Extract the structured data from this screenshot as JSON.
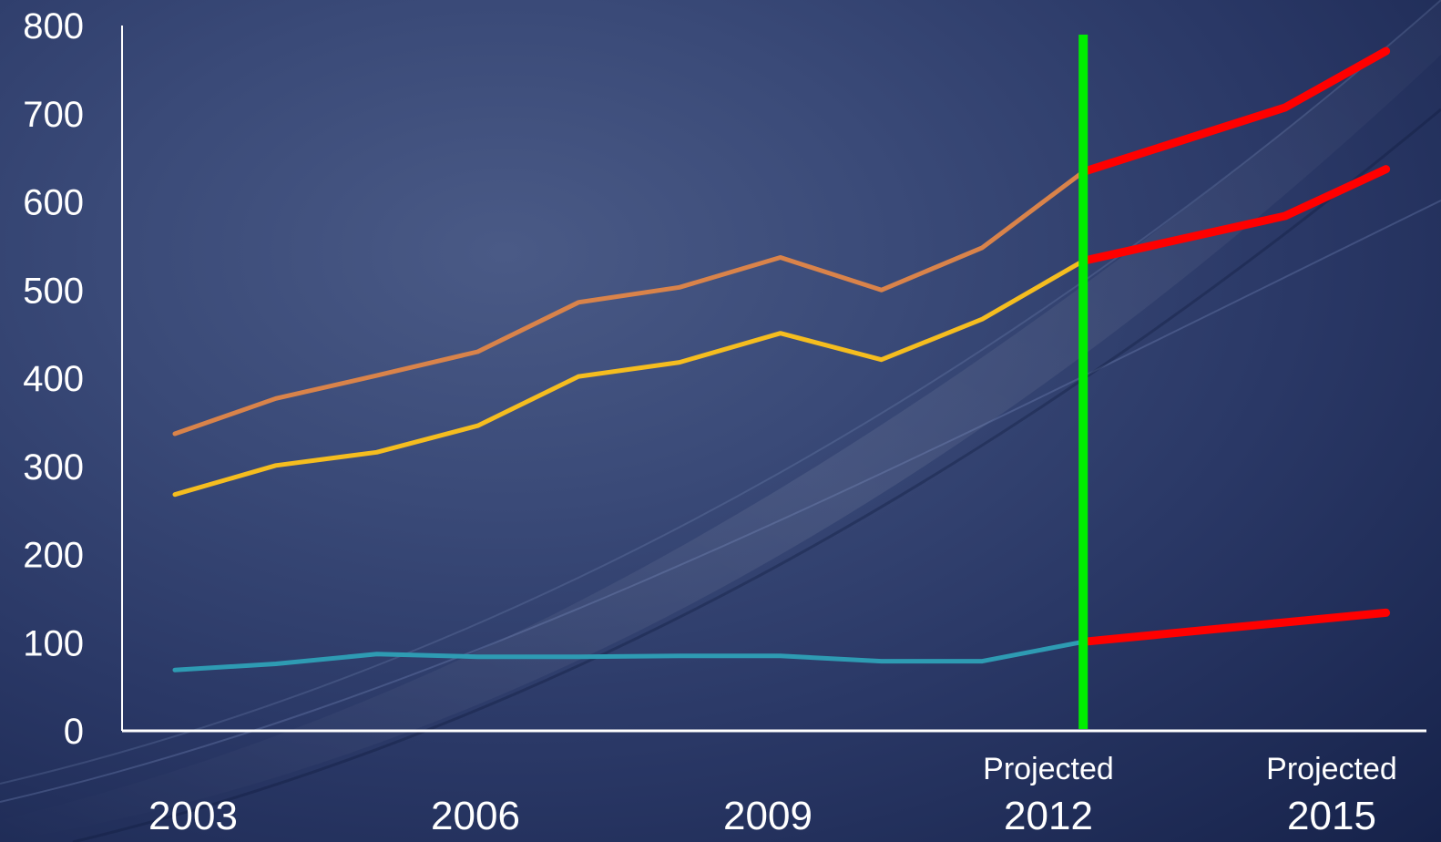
{
  "colors": {
    "series_total": "#d9834a",
    "series_middle": "#f5bd1f",
    "series_bottom": "#2e9bb3",
    "projection": "#ff0000",
    "divider": "#00ee00",
    "axis": "#ffffff"
  },
  "chart_data": {
    "type": "line",
    "title": "",
    "xlabel": "",
    "ylabel": "",
    "ylim": [
      0,
      800
    ],
    "yticks": [
      0,
      100,
      200,
      300,
      400,
      500,
      600,
      700,
      800
    ],
    "xlim": [
      2002.5,
      2015.5
    ],
    "xticks": [
      {
        "x": 2003,
        "label": "2003",
        "sub": ""
      },
      {
        "x": 2006,
        "label": "2006",
        "sub": ""
      },
      {
        "x": 2009,
        "label": "2009",
        "sub": ""
      },
      {
        "x": 2012,
        "label": "2012",
        "sub": "Projected"
      },
      {
        "x": 2015,
        "label": "2015",
        "sub": "Projected"
      }
    ],
    "grid": false,
    "legend": "none",
    "projection_start": 2012,
    "series": [
      {
        "key": "series_total",
        "x": [
          2003,
          2004,
          2005,
          2006,
          2007,
          2008,
          2009,
          2010,
          2011,
          2012
        ],
        "values": [
          337,
          377,
          403,
          430,
          486,
          503,
          537,
          500,
          548,
          634
        ],
        "projection": {
          "x": [
            2012,
            2014,
            2015
          ],
          "values": [
            634,
            707,
            771
          ]
        }
      },
      {
        "key": "series_middle",
        "x": [
          2003,
          2004,
          2005,
          2006,
          2007,
          2008,
          2009,
          2010,
          2011,
          2012
        ],
        "values": [
          268,
          301,
          316,
          346,
          402,
          418,
          451,
          421,
          467,
          533
        ],
        "projection": {
          "x": [
            2012,
            2014,
            2015
          ],
          "values": [
            533,
            584,
            637
          ]
        }
      },
      {
        "key": "series_bottom",
        "x": [
          2003,
          2004,
          2005,
          2006,
          2007,
          2008,
          2009,
          2010,
          2011,
          2012
        ],
        "values": [
          69,
          76,
          87,
          84,
          84,
          85,
          85,
          79,
          79,
          101
        ],
        "projection": {
          "x": [
            2012,
            2014,
            2015
          ],
          "values": [
            101,
            123,
            134
          ]
        }
      }
    ]
  }
}
